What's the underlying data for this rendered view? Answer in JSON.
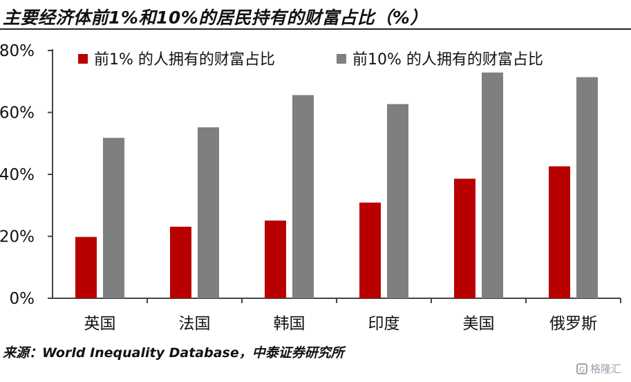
{
  "title": "主要经济体前1%和10%的居民持有的财富占比（%）",
  "source": "来源：World Inequality Database，中泰证券研究所",
  "watermark": {
    "icon": "G",
    "text": "格隆汇"
  },
  "colors": {
    "series1": "#b80000",
    "series2": "#7f7f7f",
    "axis": "#444444"
  },
  "chart_data": {
    "type": "bar",
    "categories": [
      "英国",
      "法国",
      "韩国",
      "印度",
      "美国",
      "俄罗斯"
    ],
    "series": [
      {
        "name": "前1% 的人拥有的财富占比",
        "values": [
          19.8,
          23.1,
          25.1,
          30.9,
          38.6,
          42.6
        ]
      },
      {
        "name": "前10% 的人拥有的财富占比",
        "values": [
          51.8,
          55.2,
          65.6,
          62.7,
          72.9,
          71.4
        ]
      }
    ],
    "yticks": [
      "0%",
      "20%",
      "40%",
      "60%",
      "80%"
    ],
    "ytick_values": [
      0,
      20,
      40,
      60,
      80
    ],
    "ylim": [
      0,
      80
    ],
    "legend": "top",
    "grid": false
  }
}
